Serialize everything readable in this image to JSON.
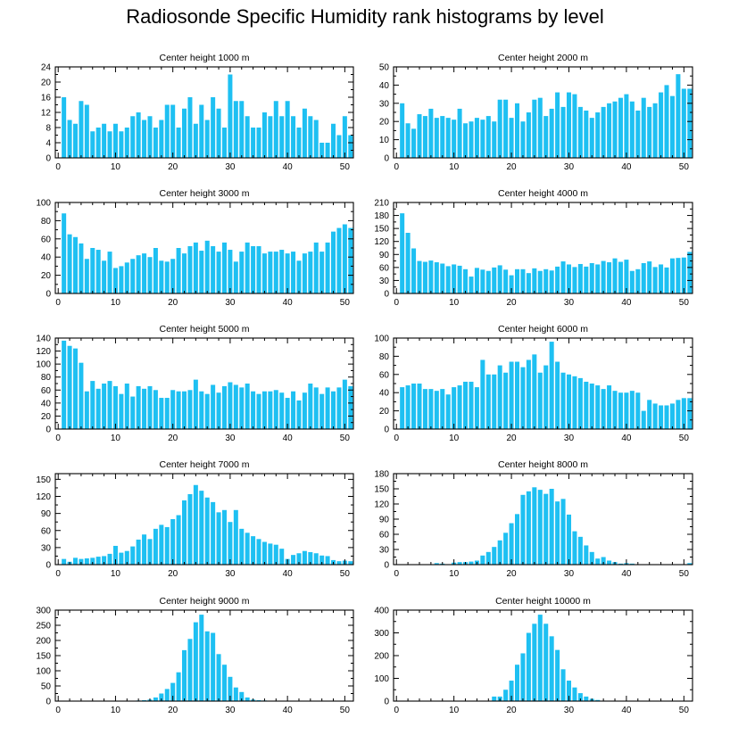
{
  "title": "Radiosonde Specific Humidity rank histograms by level",
  "colors": {
    "bar": "#1ec0f2",
    "axis": "#000000",
    "background": "#ffffff"
  },
  "chart_data": [
    {
      "type": "bar",
      "title": "Center height 1000 m",
      "xlabel": "",
      "ylabel": "",
      "xlim": [
        -0.5,
        51.5
      ],
      "ylim": [
        0,
        24
      ],
      "xticks": [
        0,
        10,
        20,
        30,
        40,
        50
      ],
      "yticks": [
        0,
        4,
        8,
        12,
        16,
        20,
        24
      ],
      "x": [
        1,
        2,
        3,
        4,
        5,
        6,
        7,
        8,
        9,
        10,
        11,
        12,
        13,
        14,
        15,
        16,
        17,
        18,
        19,
        20,
        21,
        22,
        23,
        24,
        25,
        26,
        27,
        28,
        29,
        30,
        31,
        32,
        33,
        34,
        35,
        36,
        37,
        38,
        39,
        40,
        41,
        42,
        43,
        44,
        45,
        46,
        47,
        48,
        49,
        50,
        51
      ],
      "values": [
        16,
        10,
        9,
        15,
        14,
        7,
        8,
        9,
        7,
        9,
        7,
        8,
        11,
        12,
        10,
        11,
        8,
        10,
        14,
        14,
        8,
        13,
        16,
        9,
        14,
        10,
        16,
        13,
        8,
        22,
        15,
        15,
        11,
        8,
        8,
        12,
        11,
        15,
        11,
        15,
        11,
        8,
        13,
        11,
        10,
        4,
        4,
        9,
        6,
        11,
        6
      ]
    },
    {
      "type": "bar",
      "title": "Center height 2000 m",
      "xlabel": "",
      "ylabel": "",
      "xlim": [
        -0.5,
        51.5
      ],
      "ylim": [
        0,
        50
      ],
      "xticks": [
        0,
        10,
        20,
        30,
        40,
        50
      ],
      "yticks": [
        0,
        10,
        20,
        30,
        40,
        50
      ],
      "x": [
        1,
        2,
        3,
        4,
        5,
        6,
        7,
        8,
        9,
        10,
        11,
        12,
        13,
        14,
        15,
        16,
        17,
        18,
        19,
        20,
        21,
        22,
        23,
        24,
        25,
        26,
        27,
        28,
        29,
        30,
        31,
        32,
        33,
        34,
        35,
        36,
        37,
        38,
        39,
        40,
        41,
        42,
        43,
        44,
        45,
        46,
        47,
        48,
        49,
        50,
        51
      ],
      "values": [
        30,
        19,
        16,
        24,
        23,
        27,
        22,
        23,
        22,
        21,
        27,
        19,
        20,
        22,
        21,
        23,
        20,
        32,
        32,
        22,
        30,
        20,
        25,
        32,
        33,
        23,
        27,
        36,
        28,
        36,
        35,
        28,
        26,
        22,
        25,
        28,
        30,
        31,
        33,
        35,
        31,
        26,
        33,
        28,
        30,
        36,
        40,
        34,
        46,
        38,
        38
      ]
    },
    {
      "type": "bar",
      "title": "Center height 3000 m",
      "xlabel": "",
      "ylabel": "",
      "xlim": [
        -0.5,
        51.5
      ],
      "ylim": [
        0,
        100
      ],
      "xticks": [
        0,
        10,
        20,
        30,
        40,
        50
      ],
      "yticks": [
        0,
        20,
        40,
        60,
        80,
        100
      ],
      "x": [
        1,
        2,
        3,
        4,
        5,
        6,
        7,
        8,
        9,
        10,
        11,
        12,
        13,
        14,
        15,
        16,
        17,
        18,
        19,
        20,
        21,
        22,
        23,
        24,
        25,
        26,
        27,
        28,
        29,
        30,
        31,
        32,
        33,
        34,
        35,
        36,
        37,
        38,
        39,
        40,
        41,
        42,
        43,
        44,
        45,
        46,
        47,
        48,
        49,
        50,
        51
      ],
      "values": [
        88,
        65,
        62,
        55,
        38,
        50,
        48,
        36,
        46,
        28,
        30,
        34,
        38,
        42,
        44,
        40,
        50,
        36,
        35,
        38,
        50,
        44,
        52,
        56,
        47,
        58,
        52,
        46,
        56,
        48,
        35,
        46,
        56,
        52,
        52,
        44,
        46,
        46,
        48,
        44,
        46,
        36,
        44,
        46,
        56,
        46,
        56,
        68,
        72,
        76,
        72
      ]
    },
    {
      "type": "bar",
      "title": "Center height 4000 m",
      "xlabel": "",
      "ylabel": "",
      "xlim": [
        -0.5,
        51.5
      ],
      "ylim": [
        0,
        210
      ],
      "xticks": [
        0,
        10,
        20,
        30,
        40,
        50
      ],
      "yticks": [
        0,
        30,
        60,
        90,
        120,
        150,
        180,
        210
      ],
      "x": [
        1,
        2,
        3,
        4,
        5,
        6,
        7,
        8,
        9,
        10,
        11,
        12,
        13,
        14,
        15,
        16,
        17,
        18,
        19,
        20,
        21,
        22,
        23,
        24,
        25,
        26,
        27,
        28,
        29,
        30,
        31,
        32,
        33,
        34,
        35,
        36,
        37,
        38,
        39,
        40,
        41,
        42,
        43,
        44,
        45,
        46,
        47,
        48,
        49,
        50,
        51
      ],
      "values": [
        185,
        140,
        104,
        75,
        73,
        76,
        72,
        69,
        63,
        67,
        64,
        56,
        39,
        59,
        55,
        52,
        60,
        65,
        55,
        42,
        56,
        56,
        47,
        58,
        52,
        56,
        53,
        62,
        74,
        67,
        61,
        68,
        62,
        70,
        67,
        75,
        72,
        81,
        73,
        78,
        52,
        56,
        70,
        74,
        61,
        67,
        60,
        81,
        82,
        83,
        96
      ]
    },
    {
      "type": "bar",
      "title": "Center height 5000 m",
      "xlabel": "",
      "ylabel": "",
      "xlim": [
        -0.5,
        51.5
      ],
      "ylim": [
        0,
        140
      ],
      "xticks": [
        0,
        10,
        20,
        30,
        40,
        50
      ],
      "yticks": [
        0,
        20,
        40,
        60,
        80,
        100,
        120,
        140
      ],
      "x": [
        1,
        2,
        3,
        4,
        5,
        6,
        7,
        8,
        9,
        10,
        11,
        12,
        13,
        14,
        15,
        16,
        17,
        18,
        19,
        20,
        21,
        22,
        23,
        24,
        25,
        26,
        27,
        28,
        29,
        30,
        31,
        32,
        33,
        34,
        35,
        36,
        37,
        38,
        39,
        40,
        41,
        42,
        43,
        44,
        45,
        46,
        47,
        48,
        49,
        50,
        51
      ],
      "values": [
        136,
        128,
        124,
        102,
        58,
        74,
        62,
        70,
        74,
        66,
        54,
        70,
        50,
        66,
        62,
        66,
        60,
        48,
        48,
        60,
        58,
        58,
        60,
        76,
        58,
        54,
        68,
        56,
        66,
        72,
        68,
        64,
        70,
        58,
        54,
        58,
        58,
        60,
        56,
        48,
        58,
        44,
        56,
        70,
        64,
        54,
        64,
        58,
        64,
        76,
        66
      ]
    },
    {
      "type": "bar",
      "title": "Center height 6000 m",
      "xlabel": "",
      "ylabel": "",
      "xlim": [
        -0.5,
        51.5
      ],
      "ylim": [
        0,
        100
      ],
      "xticks": [
        0,
        10,
        20,
        30,
        40,
        50
      ],
      "yticks": [
        0,
        20,
        40,
        60,
        80,
        100
      ],
      "x": [
        1,
        2,
        3,
        4,
        5,
        6,
        7,
        8,
        9,
        10,
        11,
        12,
        13,
        14,
        15,
        16,
        17,
        18,
        19,
        20,
        21,
        22,
        23,
        24,
        25,
        26,
        27,
        28,
        29,
        30,
        31,
        32,
        33,
        34,
        35,
        36,
        37,
        38,
        39,
        40,
        41,
        42,
        43,
        44,
        45,
        46,
        47,
        48,
        49,
        50,
        51
      ],
      "values": [
        46,
        48,
        50,
        50,
        44,
        44,
        42,
        44,
        38,
        46,
        48,
        52,
        52,
        46,
        76,
        60,
        60,
        70,
        62,
        74,
        74,
        68,
        76,
        82,
        62,
        70,
        96,
        74,
        62,
        60,
        58,
        56,
        52,
        50,
        48,
        44,
        48,
        42,
        40,
        40,
        42,
        40,
        20,
        32,
        28,
        26,
        26,
        28,
        32,
        34,
        34
      ]
    },
    {
      "type": "bar",
      "title": "Center height 7000 m",
      "xlabel": "",
      "ylabel": "",
      "xlim": [
        -0.5,
        51.5
      ],
      "ylim": [
        0,
        160
      ],
      "xticks": [
        0,
        10,
        20,
        30,
        40,
        50
      ],
      "yticks": [
        0,
        30,
        60,
        90,
        120,
        150
      ],
      "x": [
        1,
        2,
        3,
        4,
        5,
        6,
        7,
        8,
        9,
        10,
        11,
        12,
        13,
        14,
        15,
        16,
        17,
        18,
        19,
        20,
        21,
        22,
        23,
        24,
        25,
        26,
        27,
        28,
        29,
        30,
        31,
        32,
        33,
        34,
        35,
        36,
        37,
        38,
        39,
        40,
        41,
        42,
        43,
        44,
        45,
        46,
        47,
        48,
        49,
        50,
        51
      ],
      "values": [
        10,
        5,
        12,
        10,
        11,
        12,
        14,
        15,
        19,
        33,
        21,
        24,
        32,
        44,
        53,
        45,
        63,
        70,
        66,
        80,
        87,
        113,
        124,
        140,
        130,
        118,
        110,
        92,
        96,
        75,
        96,
        63,
        56,
        50,
        45,
        40,
        37,
        35,
        28,
        10,
        17,
        20,
        24,
        22,
        20,
        16,
        15,
        8,
        6,
        7,
        6
      ]
    },
    {
      "type": "bar",
      "title": "Center height 8000 m",
      "xlabel": "",
      "ylabel": "",
      "xlim": [
        -0.5,
        51.5
      ],
      "ylim": [
        0,
        180
      ],
      "xticks": [
        0,
        10,
        20,
        30,
        40,
        50
      ],
      "yticks": [
        0,
        30,
        60,
        90,
        120,
        150,
        180
      ],
      "x": [
        1,
        2,
        3,
        4,
        5,
        6,
        7,
        8,
        9,
        10,
        11,
        12,
        13,
        14,
        15,
        16,
        17,
        18,
        19,
        20,
        21,
        22,
        23,
        24,
        25,
        26,
        27,
        28,
        29,
        30,
        31,
        32,
        33,
        34,
        35,
        36,
        37,
        38,
        39,
        40,
        41,
        42,
        43,
        44,
        45,
        46,
        47,
        48,
        49,
        50,
        51
      ],
      "values": [
        0,
        0,
        0,
        0,
        0,
        0,
        3,
        2,
        0,
        4,
        5,
        5,
        6,
        8,
        18,
        25,
        35,
        48,
        63,
        82,
        100,
        138,
        145,
        153,
        148,
        140,
        150,
        125,
        130,
        99,
        66,
        55,
        38,
        25,
        12,
        15,
        8,
        5,
        2,
        3,
        2,
        0,
        0,
        0,
        0,
        0,
        0,
        0,
        0,
        0,
        3
      ]
    },
    {
      "type": "bar",
      "title": "Center height 9000 m",
      "xlabel": "",
      "ylabel": "",
      "xlim": [
        -0.5,
        51.5
      ],
      "ylim": [
        0,
        300
      ],
      "xticks": [
        0,
        10,
        20,
        30,
        40,
        50
      ],
      "yticks": [
        0,
        50,
        100,
        150,
        200,
        250,
        300
      ],
      "x": [
        1,
        2,
        3,
        4,
        5,
        6,
        7,
        8,
        9,
        10,
        11,
        12,
        13,
        14,
        15,
        16,
        17,
        18,
        19,
        20,
        21,
        22,
        23,
        24,
        25,
        26,
        27,
        28,
        29,
        30,
        31,
        32,
        33,
        34,
        35,
        36,
        37,
        38,
        39,
        40,
        41,
        42,
        43,
        44,
        45,
        46,
        47,
        48,
        49,
        50,
        51
      ],
      "values": [
        0,
        0,
        0,
        0,
        0,
        0,
        0,
        0,
        0,
        0,
        0,
        0,
        0,
        2,
        3,
        5,
        12,
        25,
        40,
        60,
        95,
        168,
        205,
        260,
        285,
        230,
        225,
        155,
        120,
        80,
        45,
        30,
        12,
        5,
        3,
        2,
        1,
        0,
        0,
        0,
        0,
        0,
        0,
        0,
        0,
        0,
        0,
        0,
        0,
        0,
        0
      ]
    },
    {
      "type": "bar",
      "title": "Center height 10000 m",
      "xlabel": "",
      "ylabel": "",
      "xlim": [
        -0.5,
        51.5
      ],
      "ylim": [
        0,
        400
      ],
      "xticks": [
        0,
        10,
        20,
        30,
        40,
        50
      ],
      "yticks": [
        0,
        100,
        200,
        300,
        400
      ],
      "x": [
        1,
        2,
        3,
        4,
        5,
        6,
        7,
        8,
        9,
        10,
        11,
        12,
        13,
        14,
        15,
        16,
        17,
        18,
        19,
        20,
        21,
        22,
        23,
        24,
        25,
        26,
        27,
        28,
        29,
        30,
        31,
        32,
        33,
        34,
        35,
        36,
        37,
        38,
        39,
        40,
        41,
        42,
        43,
        44,
        45,
        46,
        47,
        48,
        49,
        50,
        51
      ],
      "values": [
        0,
        0,
        0,
        0,
        0,
        0,
        0,
        0,
        0,
        0,
        0,
        0,
        0,
        0,
        0,
        0,
        20,
        20,
        50,
        90,
        160,
        210,
        300,
        340,
        380,
        340,
        285,
        225,
        140,
        90,
        60,
        35,
        20,
        10,
        5,
        2,
        0,
        0,
        0,
        0,
        0,
        0,
        0,
        0,
        0,
        0,
        0,
        0,
        0,
        0,
        0
      ]
    }
  ]
}
